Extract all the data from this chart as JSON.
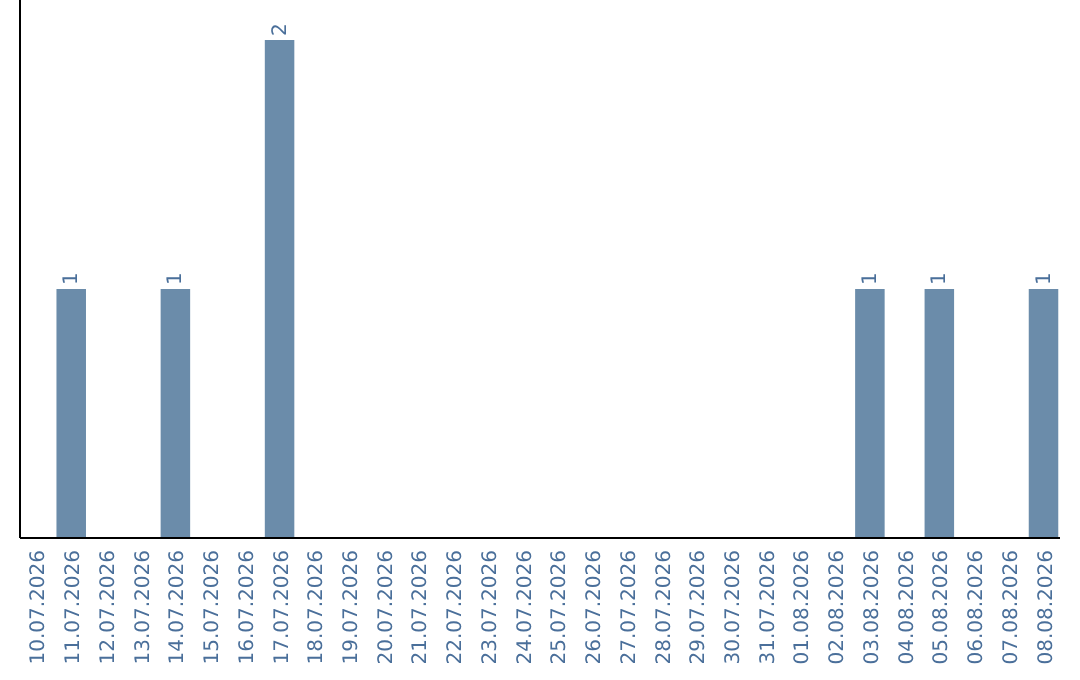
{
  "chart_data": {
    "type": "bar",
    "categories": [
      "10.07.2026",
      "11.07.2026",
      "12.07.2026",
      "13.07.2026",
      "14.07.2026",
      "15.07.2026",
      "16.07.2026",
      "17.07.2026",
      "18.07.2026",
      "19.07.2026",
      "20.07.2026",
      "21.07.2026",
      "22.07.2026",
      "23.07.2026",
      "24.07.2026",
      "25.07.2026",
      "26.07.2026",
      "27.07.2026",
      "28.07.2026",
      "29.07.2026",
      "30.07.2026",
      "31.07.2026",
      "01.08.2026",
      "02.08.2026",
      "03.08.2026",
      "04.08.2026",
      "05.08.2026",
      "06.08.2026",
      "07.08.2026",
      "08.08.2026"
    ],
    "values": [
      0,
      1,
      0,
      0,
      1,
      0,
      0,
      2,
      0,
      0,
      0,
      0,
      0,
      0,
      0,
      0,
      0,
      0,
      0,
      0,
      0,
      0,
      0,
      0,
      1,
      0,
      1,
      0,
      0,
      1
    ],
    "value_labels": [
      null,
      "1",
      null,
      null,
      "1",
      null,
      null,
      "2",
      null,
      null,
      null,
      null,
      null,
      null,
      null,
      null,
      null,
      null,
      null,
      null,
      null,
      null,
      null,
      null,
      "1",
      null,
      "1",
      null,
      null,
      "1"
    ],
    "color": "#6b8caa",
    "tick_labels": "x"
  }
}
